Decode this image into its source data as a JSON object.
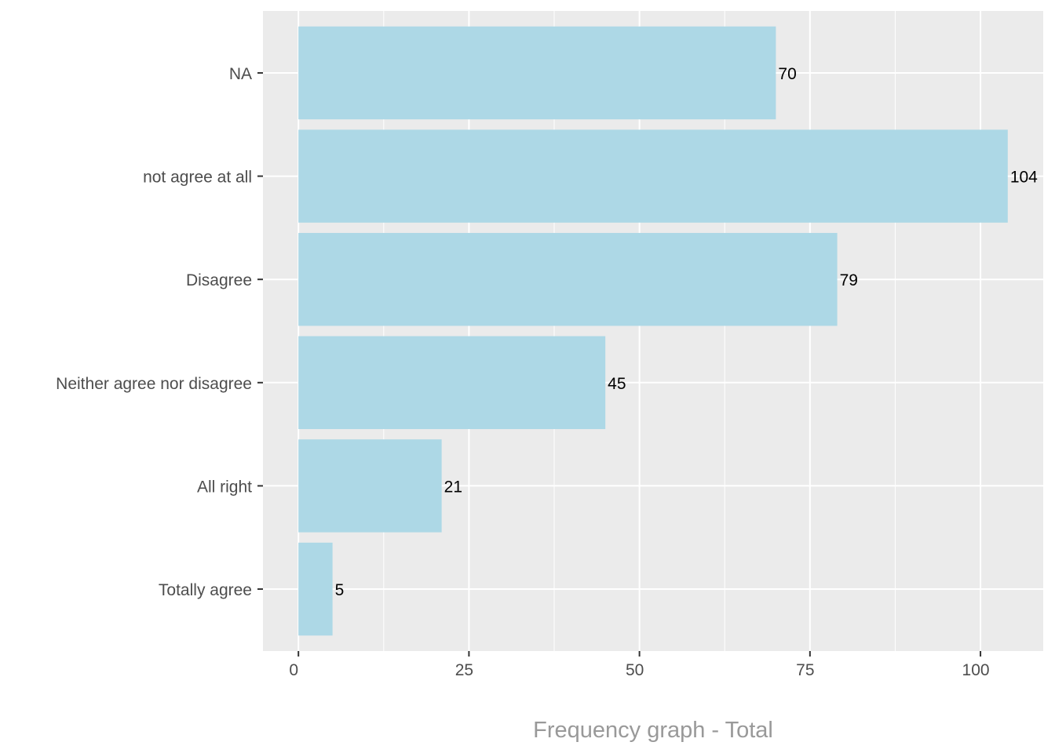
{
  "chart_data": {
    "type": "bar",
    "orientation": "horizontal",
    "categories": [
      "NA",
      "not agree at all",
      "Disagree",
      "Neither agree nor disagree",
      "All right",
      "Totally agree"
    ],
    "values": [
      70,
      104,
      79,
      45,
      21,
      5
    ],
    "data_labels": [
      "70",
      "104",
      "79",
      "45",
      "21",
      "5"
    ],
    "title": "",
    "xlabel": "Frequency graph - Total",
    "ylabel": "",
    "xlim": [
      -5.2,
      109.2
    ],
    "x_ticks": [
      0,
      25,
      50,
      75,
      100
    ],
    "x_tick_labels": [
      "0",
      "25",
      "50",
      "75",
      "100"
    ],
    "grid": true,
    "legend": "none",
    "colors": {
      "bar": "#add8e6",
      "panel_background": "#ebebeb",
      "gridline": "#ffffff",
      "axis_text": "#4d4d4d",
      "axis_title": "#999999",
      "data_label": "#000000"
    }
  }
}
